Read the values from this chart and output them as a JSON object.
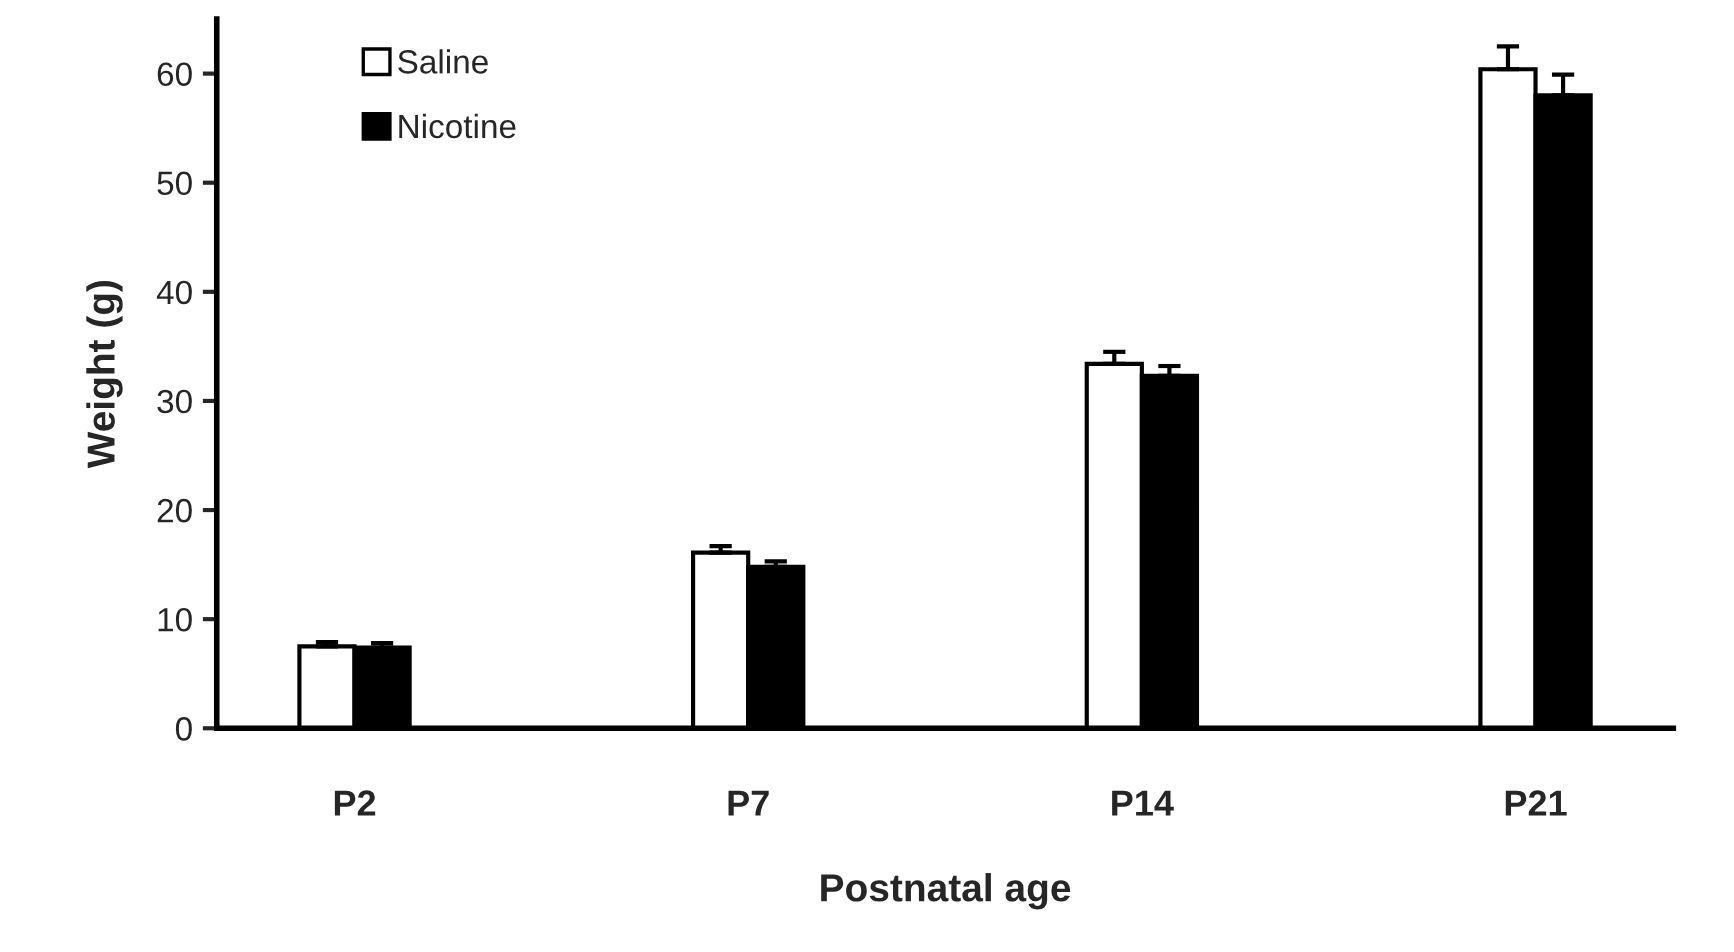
{
  "chart_data": {
    "type": "bar",
    "xlabel": "Postnatal age",
    "ylabel": "Weight (g)",
    "categories": [
      "P2",
      "P7",
      "P14",
      "P21"
    ],
    "series": [
      {
        "name": "Saline",
        "color": "#ffffff",
        "values": [
          7.5,
          16.1,
          33.4,
          60.4
        ],
        "errors": [
          0.4,
          0.6,
          1.1,
          2.1
        ]
      },
      {
        "name": "Nicotine",
        "color": "#000000",
        "values": [
          7.4,
          14.8,
          32.3,
          58.0
        ],
        "errors": [
          0.4,
          0.5,
          0.9,
          1.9
        ]
      }
    ],
    "ylim": [
      0,
      65
    ],
    "yticks": [
      0,
      10,
      20,
      30,
      40,
      50,
      60
    ],
    "grid": false,
    "legend": "top left"
  }
}
